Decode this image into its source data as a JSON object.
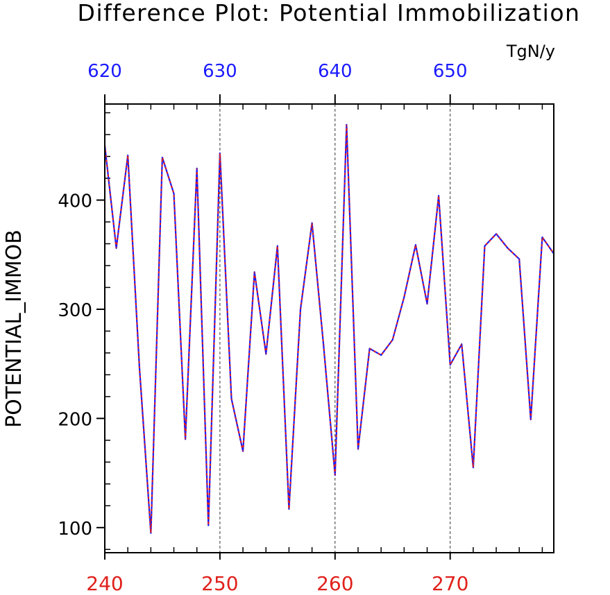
{
  "chart_data": {
    "type": "line",
    "title": "Difference Plot: Potential Immobilization",
    "units": "TgN/y",
    "ylabel": "POTENTIAL_IMMOB",
    "xlabel": "",
    "xlim": [
      240,
      279
    ],
    "ylim": [
      77,
      488
    ],
    "x_ticks_bottom": [
      240,
      250,
      260,
      270
    ],
    "x_ticks_top": [
      620,
      630,
      640,
      650
    ],
    "top_axis_offset": 380,
    "y_ticks": [
      100,
      200,
      300,
      400
    ],
    "grid": "vertical dashed at major x ticks",
    "colors": {
      "bottom_axis": "#e0201b",
      "top_axis": "#1a1aff",
      "line_solid": "#1a1aff",
      "line_dashed": "#e0201b"
    },
    "x": [
      240,
      241,
      242,
      243,
      244,
      245,
      246,
      247,
      248,
      249,
      250,
      251,
      252,
      253,
      254,
      255,
      256,
      257,
      258,
      259,
      260,
      261,
      262,
      263,
      264,
      265,
      266,
      267,
      268,
      269,
      270,
      271,
      272,
      273,
      274,
      275,
      276,
      277,
      278,
      279
    ],
    "series": [
      {
        "values": [
          450,
          356,
          441,
          248,
          95,
          439,
          406,
          181,
          429,
          102,
          443,
          218,
          170,
          334,
          259,
          358,
          117,
          300,
          379,
          267,
          148,
          469,
          172,
          264,
          258,
          272,
          311,
          359,
          305,
          404,
          249,
          268,
          155,
          358,
          369,
          356,
          346,
          199,
          366,
          351
        ]
      }
    ]
  }
}
